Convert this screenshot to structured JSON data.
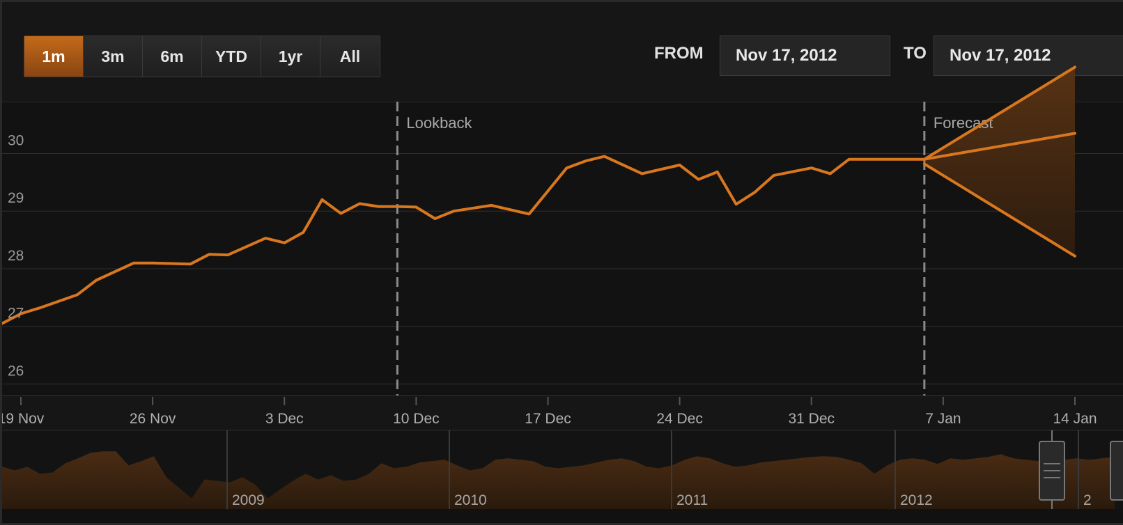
{
  "toolbar": {
    "range_buttons": [
      "1m",
      "3m",
      "6m",
      "YTD",
      "1yr",
      "All"
    ],
    "active_range": "1m",
    "from_label": "FROM",
    "from_value": "Nov 17, 2012",
    "to_label": "TO",
    "to_value": "Nov 17, 2012"
  },
  "colors": {
    "accent": "#d9771f",
    "forecast_fill": "#4a2a12",
    "navigator_fill": "#3d2412",
    "marker_line": "#8a8a8a"
  },
  "chart_data": {
    "type": "line",
    "ylim": [
      25.8,
      30.9
    ],
    "yticks": [
      26,
      27,
      28,
      29,
      30
    ],
    "xlim": [
      "2012-11-18",
      "2013-01-14"
    ],
    "x_tick_labels": [
      {
        "label": "19 Nov",
        "date": "2012-11-19"
      },
      {
        "label": "26 Nov",
        "date": "2012-11-26"
      },
      {
        "label": "3 Dec",
        "date": "2012-12-03"
      },
      {
        "label": "10 Dec",
        "date": "2012-12-10"
      },
      {
        "label": "17 Dec",
        "date": "2012-12-17"
      },
      {
        "label": "24 Dec",
        "date": "2012-12-24"
      },
      {
        "label": "31 Dec",
        "date": "2012-12-31"
      },
      {
        "label": "7 Jan",
        "date": "2013-01-07"
      },
      {
        "label": "14 Jan",
        "date": "2013-01-14"
      }
    ],
    "markers": [
      {
        "label": "Lookback",
        "date": "2012-12-09"
      },
      {
        "label": "Forecast",
        "date": "2013-01-06"
      }
    ],
    "series": [
      {
        "x": [
          "2012-11-18",
          "2012-11-19",
          "2012-11-20",
          "2012-11-22",
          "2012-11-23",
          "2012-11-25",
          "2012-11-26",
          "2012-11-28",
          "2012-11-29",
          "2012-11-30",
          "2012-12-02",
          "2012-12-03",
          "2012-12-04",
          "2012-12-05",
          "2012-12-06",
          "2012-12-07",
          "2012-12-08",
          "2012-12-09",
          "2012-12-10",
          "2012-12-11",
          "2012-12-12",
          "2012-12-14",
          "2012-12-16",
          "2012-12-18",
          "2012-12-19",
          "2012-12-20",
          "2012-12-21",
          "2012-12-22",
          "2012-12-24",
          "2012-12-25",
          "2012-12-26",
          "2012-12-27",
          "2012-12-28",
          "2012-12-29",
          "2012-12-31",
          "2013-01-01",
          "2013-01-02",
          "2013-01-03",
          "2013-01-04",
          "2013-01-05",
          "2013-01-06"
        ],
        "values": [
          27.05,
          27.22,
          27.32,
          27.55,
          27.8,
          28.1,
          28.1,
          28.08,
          28.25,
          28.24,
          28.53,
          28.45,
          28.63,
          29.2,
          28.96,
          29.13,
          29.08,
          29.08,
          29.07,
          28.87,
          29.0,
          29.1,
          28.95,
          29.75,
          29.87,
          29.95,
          29.8,
          29.65,
          29.8,
          29.55,
          29.68,
          29.12,
          29.33,
          29.62,
          29.75,
          29.65,
          29.9,
          29.9,
          29.9,
          29.9,
          29.9
        ]
      },
      {
        "x": [
          "2013-01-06",
          "2013-01-14"
        ],
        "values": [
          29.9,
          30.35
        ]
      },
      {
        "x": [
          "2013-01-06",
          "2013-01-14"
        ],
        "values": [
          29.82,
          28.22
        ]
      },
      {
        "x": [
          "2013-01-06",
          "2013-01-14"
        ],
        "values": [
          29.9,
          31.5
        ]
      }
    ],
    "navigator": {
      "year_labels": [
        "2009",
        "2010",
        "2011",
        "2012",
        "2"
      ],
      "values": [
        0.6,
        0.55,
        0.6,
        0.5,
        0.52,
        0.65,
        0.72,
        0.8,
        0.82,
        0.82,
        0.62,
        0.68,
        0.75,
        0.45,
        0.3,
        0.15,
        0.42,
        0.4,
        0.38,
        0.45,
        0.35,
        0.15,
        0.28,
        0.4,
        0.5,
        0.42,
        0.48,
        0.4,
        0.42,
        0.5,
        0.65,
        0.58,
        0.6,
        0.66,
        0.68,
        0.7,
        0.62,
        0.55,
        0.58,
        0.7,
        0.72,
        0.7,
        0.68,
        0.6,
        0.58,
        0.6,
        0.62,
        0.66,
        0.7,
        0.72,
        0.68,
        0.6,
        0.58,
        0.62,
        0.7,
        0.75,
        0.72,
        0.65,
        0.6,
        0.62,
        0.66,
        0.68,
        0.7,
        0.72,
        0.74,
        0.75,
        0.74,
        0.7,
        0.65,
        0.5,
        0.62,
        0.7,
        0.72,
        0.7,
        0.64,
        0.72,
        0.7,
        0.72,
        0.74,
        0.78,
        0.72,
        0.7,
        0.68,
        0.66,
        0.7,
        0.72,
        0.7,
        0.72,
        0.74
      ]
    }
  }
}
